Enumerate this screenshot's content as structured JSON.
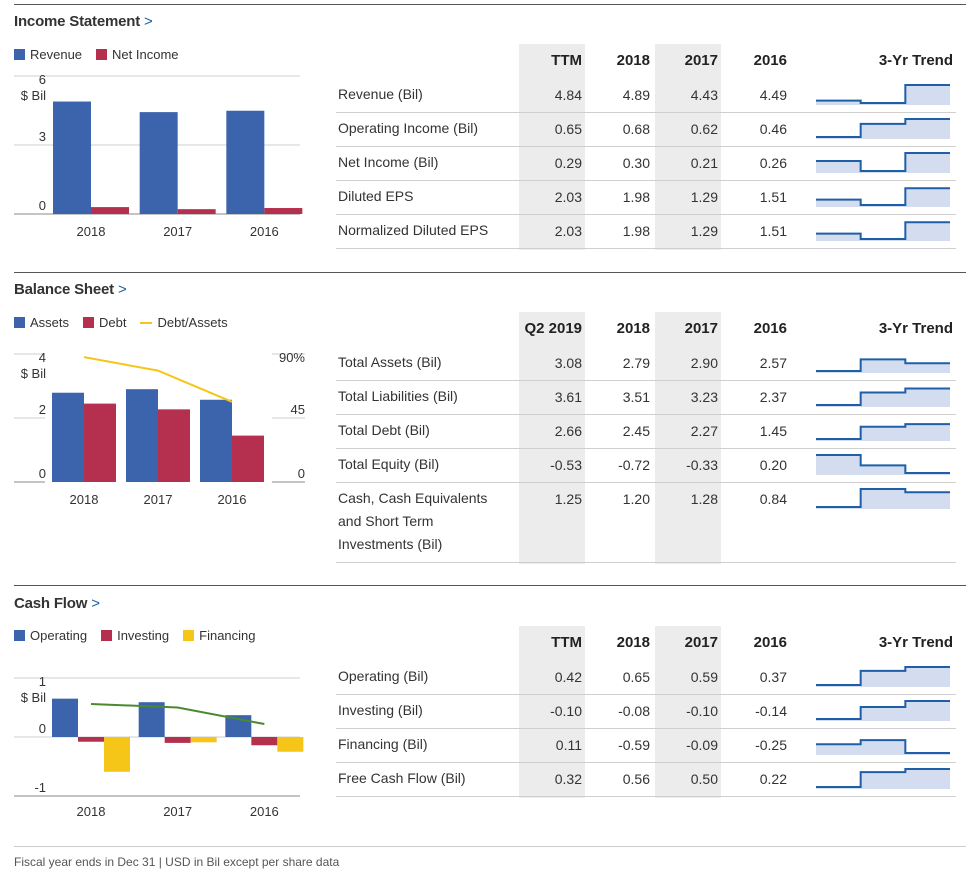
{
  "footer": "Fiscal year ends in Dec 31 | USD in Bil except per share data",
  "colors": {
    "blue": "#3b64ad",
    "red": "#b5304f",
    "yellow": "#f5c518",
    "green": "#4a8a2e",
    "trend_line": "#1f5fa8",
    "trend_fill": "#d3ddef",
    "link": "#1f5fa8"
  },
  "income": {
    "title": "Income Statement",
    "chevron": ">",
    "legend": [
      "Revenue",
      "Net Income"
    ],
    "table": {
      "headers": [
        "TTM",
        "2018",
        "2017",
        "2016",
        "3-Yr Trend"
      ],
      "rows": [
        {
          "label": "Revenue (Bil)",
          "values": [
            "4.84",
            "4.89",
            "4.43",
            "4.49"
          ]
        },
        {
          "label": "Operating Income (Bil)",
          "values": [
            "0.65",
            "0.68",
            "0.62",
            "0.46"
          ]
        },
        {
          "label": "Net Income (Bil)",
          "values": [
            "0.29",
            "0.30",
            "0.21",
            "0.26"
          ]
        },
        {
          "label": "Diluted EPS",
          "values": [
            "2.03",
            "1.98",
            "1.29",
            "1.51"
          ]
        },
        {
          "label": "Normalized Diluted EPS",
          "values": [
            "2.03",
            "1.98",
            "1.29",
            "1.51"
          ]
        }
      ]
    }
  },
  "balance": {
    "title": "Balance Sheet",
    "chevron": ">",
    "legend": [
      "Assets",
      "Debt",
      "Debt/Assets"
    ],
    "table": {
      "headers": [
        "Q2 2019",
        "2018",
        "2017",
        "2016",
        "3-Yr Trend"
      ],
      "rows": [
        {
          "label": "Total Assets (Bil)",
          "values": [
            "3.08",
            "2.79",
            "2.90",
            "2.57"
          ]
        },
        {
          "label": "Total Liabilities (Bil)",
          "values": [
            "3.61",
            "3.51",
            "3.23",
            "2.37"
          ]
        },
        {
          "label": "Total Debt (Bil)",
          "values": [
            "2.66",
            "2.45",
            "2.27",
            "1.45"
          ]
        },
        {
          "label": "Total Equity (Bil)",
          "values": [
            "-0.53",
            "-0.72",
            "-0.33",
            "0.20"
          ]
        },
        {
          "label": "Cash, Cash Equivalents and Short Term Investments (Bil)",
          "label_lines": [
            "Cash, Cash Equivalents",
            "and Short Term",
            "Investments (Bil)"
          ],
          "values": [
            "1.25",
            "1.20",
            "1.28",
            "0.84"
          ]
        }
      ]
    }
  },
  "cashflow": {
    "title": "Cash Flow",
    "chevron": ">",
    "legend": [
      "Operating",
      "Investing",
      "Financing"
    ],
    "table": {
      "headers": [
        "TTM",
        "2018",
        "2017",
        "2016",
        "3-Yr Trend"
      ],
      "rows": [
        {
          "label": "Operating (Bil)",
          "values": [
            "0.42",
            "0.65",
            "0.59",
            "0.37"
          ]
        },
        {
          "label": "Investing (Bil)",
          "values": [
            "-0.10",
            "-0.08",
            "-0.10",
            "-0.14"
          ]
        },
        {
          "label": "Financing (Bil)",
          "values": [
            "0.11",
            "-0.59",
            "-0.09",
            "-0.25"
          ]
        },
        {
          "label": "Free Cash Flow (Bil)",
          "values": [
            "0.32",
            "0.56",
            "0.50",
            "0.22"
          ]
        }
      ]
    }
  },
  "chart_data": [
    {
      "type": "bar",
      "title": "",
      "categories": [
        "2018",
        "2017",
        "2016"
      ],
      "series": [
        {
          "name": "Revenue",
          "values": [
            4.89,
            4.43,
            4.49
          ]
        },
        {
          "name": "Net Income",
          "values": [
            0.3,
            0.21,
            0.26
          ]
        }
      ],
      "ylabel": "$ Bil",
      "ylim": [
        0,
        6
      ],
      "yticks": [
        "6",
        "3",
        "0"
      ],
      "grid": true,
      "legend": "top-left"
    },
    {
      "type": "bar",
      "title": "",
      "categories": [
        "2018",
        "2017",
        "2016"
      ],
      "series": [
        {
          "name": "Assets",
          "values": [
            2.79,
            2.9,
            2.57
          ]
        },
        {
          "name": "Debt",
          "values": [
            2.45,
            2.27,
            1.45
          ]
        },
        {
          "name": "Debt/Assets",
          "type": "line",
          "axis": "right",
          "values": [
            87.8,
            78.3,
            56.4
          ]
        }
      ],
      "ylabel": "$ Bil",
      "ylim": [
        0,
        4
      ],
      "yticks": [
        "4",
        "2",
        "0"
      ],
      "y2lim": [
        0,
        90
      ],
      "y2ticks": [
        "90%",
        "45",
        "0"
      ],
      "grid": true,
      "legend": "top-left"
    },
    {
      "type": "bar",
      "title": "",
      "categories": [
        "2018",
        "2017",
        "2016"
      ],
      "series": [
        {
          "name": "Operating",
          "values": [
            0.65,
            0.59,
            0.37
          ]
        },
        {
          "name": "Investing",
          "values": [
            -0.08,
            -0.1,
            -0.14
          ]
        },
        {
          "name": "Financing",
          "values": [
            -0.59,
            -0.09,
            -0.25
          ]
        },
        {
          "type": "line",
          "values": [
            0.56,
            0.5,
            0.22
          ]
        }
      ],
      "ylabel": "$ Bil",
      "ylim": [
        -1,
        1
      ],
      "yticks": [
        "1",
        "0",
        "-1"
      ],
      "grid": true,
      "legend": "top-left"
    }
  ]
}
